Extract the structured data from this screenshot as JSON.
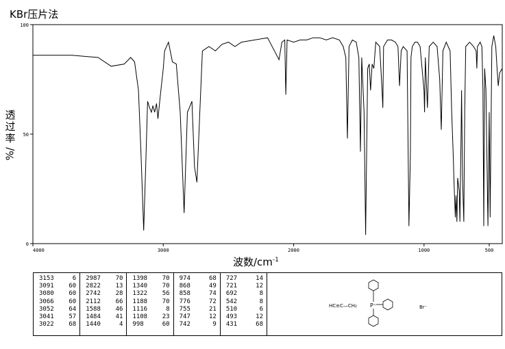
{
  "chart_data": {
    "type": "line",
    "title": "KBr压片法",
    "ylabel_chars": [
      "透",
      "过",
      "率"
    ],
    "ylabel_unit": "%/",
    "xlabel": "波数/cm",
    "xlabel_sup": "-1",
    "xlim": [
      4000,
      400
    ],
    "ylim": [
      0,
      100
    ],
    "x_ticks": [
      "4000",
      "3000",
      "2000",
      "1000",
      "500"
    ],
    "y_ticks": [
      "0",
      "50",
      "100"
    ],
    "grid": false,
    "series": [
      {
        "baseline": [
          [
            4000,
            86
          ],
          [
            3700,
            86
          ],
          [
            3500,
            85
          ],
          [
            3400,
            81
          ],
          [
            3300,
            82
          ],
          [
            3250,
            85
          ],
          [
            3220,
            83
          ],
          [
            3190,
            70
          ],
          [
            3170,
            40
          ],
          [
            3150,
            6
          ],
          [
            3135,
            35
          ],
          [
            3120,
            65
          ],
          [
            3105,
            62
          ],
          [
            3091,
            60
          ],
          [
            3080,
            63
          ],
          [
            3066,
            60
          ],
          [
            3052,
            64
          ],
          [
            3041,
            57
          ],
          [
            3022,
            68
          ],
          [
            3000,
            80
          ],
          [
            2990,
            88
          ],
          [
            2960,
            92
          ],
          [
            2930,
            83
          ],
          [
            2900,
            82
          ],
          [
            2870,
            60
          ],
          [
            2840,
            14
          ],
          [
            2815,
            60
          ],
          [
            2800,
            62
          ],
          [
            2780,
            65
          ],
          [
            2760,
            35
          ],
          [
            2742,
            28
          ],
          [
            2720,
            60
          ],
          [
            2700,
            88
          ],
          [
            2650,
            90
          ],
          [
            2600,
            88
          ],
          [
            2550,
            91
          ],
          [
            2500,
            92
          ],
          [
            2450,
            90
          ],
          [
            2400,
            92
          ],
          [
            2300,
            93
          ],
          [
            2200,
            94
          ],
          [
            2112,
            84
          ],
          [
            2090,
            92
          ],
          [
            2068,
            93
          ],
          [
            2060,
            68
          ],
          [
            2050,
            93
          ],
          [
            2000,
            92
          ],
          [
            1950,
            93
          ],
          [
            1900,
            93
          ],
          [
            1850,
            94
          ],
          [
            1800,
            94
          ],
          [
            1750,
            93
          ],
          [
            1700,
            94
          ],
          [
            1650,
            93
          ],
          [
            1620,
            90
          ],
          [
            1600,
            85
          ],
          [
            1588,
            48
          ],
          [
            1575,
            90
          ],
          [
            1550,
            93
          ],
          [
            1520,
            92
          ],
          [
            1500,
            85
          ],
          [
            1488,
            42
          ],
          [
            1478,
            85
          ],
          [
            1460,
            60
          ],
          [
            1448,
            4
          ],
          [
            1432,
            80
          ],
          [
            1420,
            82
          ],
          [
            1410,
            70
          ],
          [
            1398,
            82
          ],
          [
            1385,
            80
          ],
          [
            1370,
            92
          ],
          [
            1340,
            90
          ],
          [
            1322,
            70
          ],
          [
            1316,
            62
          ],
          [
            1310,
            90
          ],
          [
            1280,
            93
          ],
          [
            1250,
            93
          ],
          [
            1220,
            92
          ],
          [
            1200,
            90
          ],
          [
            1188,
            72
          ],
          [
            1175,
            88
          ],
          [
            1160,
            90
          ],
          [
            1130,
            88
          ],
          [
            1116,
            8
          ],
          [
            1105,
            40
          ],
          [
            1100,
            85
          ],
          [
            1090,
            90
          ],
          [
            1070,
            92
          ],
          [
            1050,
            92
          ],
          [
            1030,
            90
          ],
          [
            1000,
            70
          ],
          [
            996,
            60
          ],
          [
            990,
            85
          ],
          [
            974,
            62
          ],
          [
            960,
            90
          ],
          [
            930,
            92
          ],
          [
            900,
            90
          ],
          [
            880,
            75
          ],
          [
            868,
            52
          ],
          [
            855,
            88
          ],
          [
            830,
            92
          ],
          [
            800,
            88
          ],
          [
            788,
            60
          ],
          [
            776,
            40
          ],
          [
            770,
            28
          ],
          [
            760,
            12
          ],
          [
            755,
            22
          ],
          [
            748,
            10
          ],
          [
            742,
            30
          ],
          [
            730,
            24
          ],
          [
            725,
            10
          ],
          [
            715,
            55
          ],
          [
            712,
            70
          ],
          [
            705,
            30
          ],
          [
            695,
            10
          ],
          [
            688,
            60
          ],
          [
            680,
            90
          ],
          [
            650,
            92
          ],
          [
            620,
            90
          ],
          [
            600,
            88
          ],
          [
            595,
            80
          ],
          [
            590,
            90
          ],
          [
            570,
            92
          ],
          [
            556,
            90
          ],
          [
            548,
            70
          ],
          [
            542,
            8
          ],
          [
            535,
            80
          ],
          [
            525,
            70
          ],
          [
            510,
            8
          ],
          [
            500,
            60
          ],
          [
            493,
            12
          ],
          [
            480,
            90
          ],
          [
            465,
            95
          ],
          [
            450,
            90
          ],
          [
            440,
            80
          ],
          [
            431,
            72
          ],
          [
            420,
            78
          ],
          [
            400,
            80
          ]
        ]
      }
    ]
  },
  "peaks": [
    [
      [
        "3153",
        "6"
      ],
      [
        "3091",
        "60"
      ],
      [
        "3080",
        "60"
      ],
      [
        "3066",
        "60"
      ],
      [
        "3052",
        "64"
      ],
      [
        "3041",
        "57"
      ],
      [
        "3022",
        "68"
      ]
    ],
    [
      [
        "2987",
        "70"
      ],
      [
        "2822",
        "13"
      ],
      [
        "2742",
        "28"
      ],
      [
        "2112",
        "66"
      ],
      [
        "1588",
        "46"
      ],
      [
        "1484",
        "41"
      ],
      [
        "1440",
        "4"
      ]
    ],
    [
      [
        "1398",
        "70"
      ],
      [
        "1340",
        "70"
      ],
      [
        "1322",
        "56"
      ],
      [
        "1188",
        "70"
      ],
      [
        "1116",
        "8"
      ],
      [
        "1108",
        "23"
      ],
      [
        "998",
        "60"
      ]
    ],
    [
      [
        "974",
        "68"
      ],
      [
        "868",
        "49"
      ],
      [
        "858",
        "74"
      ],
      [
        "776",
        "72"
      ],
      [
        "755",
        "21"
      ],
      [
        "747",
        "12"
      ],
      [
        "742",
        "9"
      ]
    ],
    [
      [
        "727",
        "14"
      ],
      [
        "721",
        "12"
      ],
      [
        "692",
        "8"
      ],
      [
        "542",
        "8"
      ],
      [
        "510",
        "6"
      ],
      [
        "493",
        "12"
      ],
      [
        "431",
        "68"
      ]
    ]
  ],
  "structure": {
    "left_label": "HC≡C—CH₂",
    "center_label": "P⁺",
    "counter_ion": "Br⁻"
  }
}
